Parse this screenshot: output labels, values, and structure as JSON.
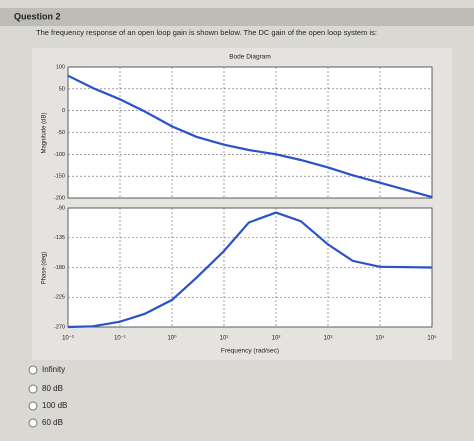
{
  "question": {
    "title": "Question 2",
    "text": "The frequency response of an open loop gain is shown below. The DC gain of the open loop system is:"
  },
  "chart_data": [
    {
      "type": "line",
      "title": "Bode Diagram",
      "y_label": "Magnitude (dB)",
      "log_x": true,
      "grid": true,
      "x": [
        0.01,
        0.03,
        0.1,
        0.3,
        1,
        3,
        10,
        30,
        100,
        300,
        1000,
        3000,
        10000,
        100000
      ],
      "series": [
        {
          "color": "#2a52c9",
          "values": [
            80,
            52,
            26,
            -2,
            -36,
            -60,
            -78,
            -90,
            -100,
            -113,
            -130,
            -148,
            -165,
            -198
          ]
        }
      ],
      "xlim": [
        0.01,
        100000
      ],
      "ylim": [
        -200,
        100
      ],
      "yticks": [
        100,
        50,
        0,
        -50,
        -100,
        -150,
        -200
      ]
    },
    {
      "type": "line",
      "x_label": "Frequency (rad/sec)",
      "y_label": "Phase (deg)",
      "log_x": true,
      "grid": true,
      "x": [
        0.01,
        0.03,
        0.1,
        0.3,
        1,
        3,
        10,
        30,
        100,
        300,
        1000,
        3000,
        10000,
        100000
      ],
      "series": [
        {
          "color": "#2a52c9",
          "values": [
            -270,
            -269,
            -262,
            -250,
            -229,
            -195,
            -155,
            -112,
            -97,
            -110,
            -145,
            -170,
            -179,
            -180
          ]
        }
      ],
      "xlim": [
        0.01,
        100000
      ],
      "ylim": [
        -270,
        -90
      ],
      "yticks": [
        -90,
        -135,
        -180,
        -225,
        -270
      ],
      "xticks": [
        {
          "value": 0.01,
          "label": "10⁻²"
        },
        {
          "value": 0.1,
          "label": "10⁻¹"
        },
        {
          "value": 1,
          "label": "10⁰"
        },
        {
          "value": 10,
          "label": "10¹"
        },
        {
          "value": 100,
          "label": "10²"
        },
        {
          "value": 1000,
          "label": "10³"
        },
        {
          "value": 10000,
          "label": "10⁴"
        },
        {
          "value": 100000,
          "label": "10⁵"
        }
      ]
    }
  ],
  "options": [
    "Infinity",
    "80 dB",
    "100 dB",
    "60 dB"
  ]
}
